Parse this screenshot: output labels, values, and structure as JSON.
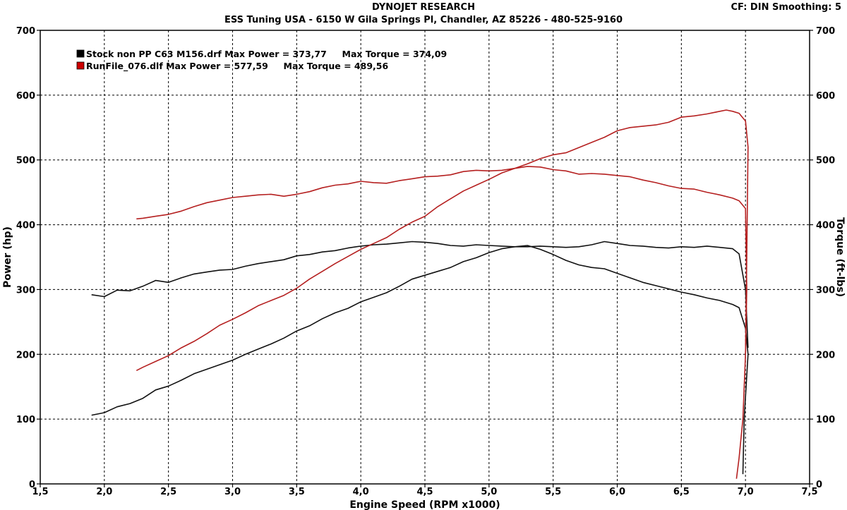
{
  "header": {
    "title": "DYNOJET RESEARCH",
    "subtitle": "ESS Tuning USA - 6150 W Gila Springs Pl, Chandler, AZ 85226 - 480-525-9160",
    "settings": "CF: DIN  Smoothing: 5"
  },
  "chart_data": {
    "type": "line",
    "xlabel": "Engine Speed (RPM x1000)",
    "ylabel": "Power (hp)",
    "y2label": "Torque (ft-lbs)",
    "xlim": [
      1.5,
      7.5
    ],
    "ylim": [
      0,
      700
    ],
    "y2lim": [
      0,
      700
    ],
    "x_ticks": [
      "1,5",
      "2,0",
      "2,5",
      "3,0",
      "3,5",
      "4,0",
      "4,5",
      "5,0",
      "5,5",
      "6,0",
      "6,5",
      "7,0",
      "7,5"
    ],
    "y_ticks": [
      "0",
      "100",
      "200",
      "300",
      "400",
      "500",
      "600",
      "700"
    ],
    "grid": true,
    "legend_position": "top-left",
    "legend": [
      {
        "text": "Stock non PP C63 M156.drf Max Power = 373,77     Max Torque = 374,09",
        "color": "#000000"
      },
      {
        "text": "RunFile_076.dlf Max Power = 577,59     Max Torque = 489,56",
        "color": "#cc0000"
      }
    ],
    "series": [
      {
        "name": "Stock non PP C63 M156.drf",
        "kind": "power",
        "axis": "left",
        "color": "#111111",
        "x": [
          1.9,
          2.0,
          2.1,
          2.2,
          2.3,
          2.4,
          2.5,
          2.6,
          2.7,
          2.8,
          2.9,
          3.0,
          3.1,
          3.2,
          3.3,
          3.4,
          3.5,
          3.6,
          3.7,
          3.8,
          3.9,
          4.0,
          4.1,
          4.2,
          4.3,
          4.4,
          4.5,
          4.6,
          4.7,
          4.8,
          4.9,
          5.0,
          5.1,
          5.2,
          5.3,
          5.4,
          5.5,
          5.6,
          5.7,
          5.8,
          5.9,
          6.0,
          6.1,
          6.2,
          6.3,
          6.4,
          6.5,
          6.6,
          6.7,
          6.8,
          6.9,
          6.95,
          7.0,
          7.02,
          6.99,
          6.98
        ],
        "y": [
          106,
          110,
          119,
          124,
          132,
          145,
          151,
          160,
          170,
          177,
          184,
          191,
          200,
          208,
          216,
          225,
          236,
          244,
          255,
          264,
          271,
          281,
          288,
          295,
          305,
          316,
          322,
          328,
          334,
          343,
          349,
          357,
          363,
          366,
          368,
          362,
          354,
          345,
          338,
          334,
          332,
          325,
          318,
          311,
          306,
          301,
          296,
          292,
          287,
          283,
          277,
          272,
          240,
          200,
          100,
          15
        ]
      },
      {
        "name": "Stock non PP C63 M156.drf",
        "kind": "torque",
        "axis": "right",
        "color": "#111111",
        "x": [
          1.9,
          2.0,
          2.1,
          2.2,
          2.3,
          2.4,
          2.5,
          2.6,
          2.7,
          2.8,
          2.9,
          3.0,
          3.1,
          3.2,
          3.3,
          3.4,
          3.5,
          3.6,
          3.7,
          3.8,
          3.9,
          4.0,
          4.1,
          4.2,
          4.3,
          4.4,
          4.5,
          4.6,
          4.7,
          4.8,
          4.9,
          5.0,
          5.1,
          5.2,
          5.3,
          5.4,
          5.5,
          5.6,
          5.7,
          5.8,
          5.9,
          6.0,
          6.1,
          6.2,
          6.3,
          6.4,
          6.5,
          6.6,
          6.7,
          6.8,
          6.9,
          6.95,
          7.0,
          7.02
        ],
        "y": [
          292,
          289,
          299,
          298,
          305,
          314,
          311,
          318,
          324,
          327,
          330,
          331,
          336,
          340,
          343,
          346,
          352,
          354,
          358,
          360,
          364,
          367,
          369,
          370,
          372,
          374,
          373,
          371,
          368,
          367,
          369,
          368,
          367,
          366,
          366,
          367,
          366,
          365,
          366,
          369,
          374,
          371,
          368,
          367,
          365,
          364,
          366,
          365,
          367,
          365,
          363,
          355,
          300,
          210
        ]
      },
      {
        "name": "RunFile_076.dlf",
        "kind": "power",
        "axis": "left",
        "color": "#b52020",
        "x": [
          2.25,
          2.3,
          2.4,
          2.5,
          2.6,
          2.7,
          2.8,
          2.9,
          3.0,
          3.1,
          3.2,
          3.3,
          3.4,
          3.5,
          3.6,
          3.7,
          3.8,
          3.9,
          4.0,
          4.1,
          4.2,
          4.3,
          4.4,
          4.5,
          4.6,
          4.7,
          4.8,
          4.9,
          5.0,
          5.1,
          5.2,
          5.3,
          5.4,
          5.5,
          5.6,
          5.7,
          5.8,
          5.9,
          6.0,
          6.1,
          6.2,
          6.3,
          6.4,
          6.5,
          6.6,
          6.7,
          6.8,
          6.85,
          6.9,
          6.95,
          7.0,
          7.02,
          7.01,
          7.0
        ],
        "y": [
          175,
          180,
          189,
          198,
          210,
          220,
          232,
          245,
          254,
          264,
          275,
          283,
          291,
          302,
          316,
          328,
          340,
          351,
          362,
          371,
          380,
          393,
          404,
          413,
          428,
          440,
          452,
          461,
          470,
          480,
          487,
          494,
          502,
          508,
          511,
          519,
          527,
          535,
          545,
          550,
          552,
          554,
          558,
          566,
          568,
          571,
          575,
          577,
          575,
          572,
          560,
          520,
          350,
          200
        ]
      },
      {
        "name": "RunFile_076.dlf",
        "kind": "torque",
        "axis": "right",
        "color": "#b52020",
        "x": [
          2.25,
          2.3,
          2.4,
          2.5,
          2.6,
          2.7,
          2.8,
          2.9,
          3.0,
          3.1,
          3.2,
          3.3,
          3.4,
          3.5,
          3.6,
          3.7,
          3.8,
          3.9,
          4.0,
          4.1,
          4.2,
          4.3,
          4.4,
          4.5,
          4.6,
          4.7,
          4.8,
          4.9,
          5.0,
          5.1,
          5.2,
          5.3,
          5.4,
          5.5,
          5.6,
          5.7,
          5.8,
          5.9,
          6.0,
          6.1,
          6.2,
          6.3,
          6.4,
          6.5,
          6.6,
          6.7,
          6.8,
          6.9,
          6.95,
          7.0,
          7.01,
          7.0,
          6.98,
          6.95,
          6.93
        ],
        "y": [
          409,
          410,
          413,
          416,
          421,
          428,
          434,
          438,
          442,
          444,
          446,
          447,
          444,
          447,
          451,
          457,
          461,
          463,
          467,
          465,
          464,
          468,
          471,
          474,
          475,
          477,
          482,
          484,
          483,
          484,
          487,
          490,
          489,
          485,
          483,
          478,
          479,
          478,
          476,
          474,
          469,
          465,
          460,
          456,
          455,
          450,
          446,
          441,
          437,
          425,
          300,
          200,
          100,
          40,
          8
        ]
      }
    ]
  }
}
